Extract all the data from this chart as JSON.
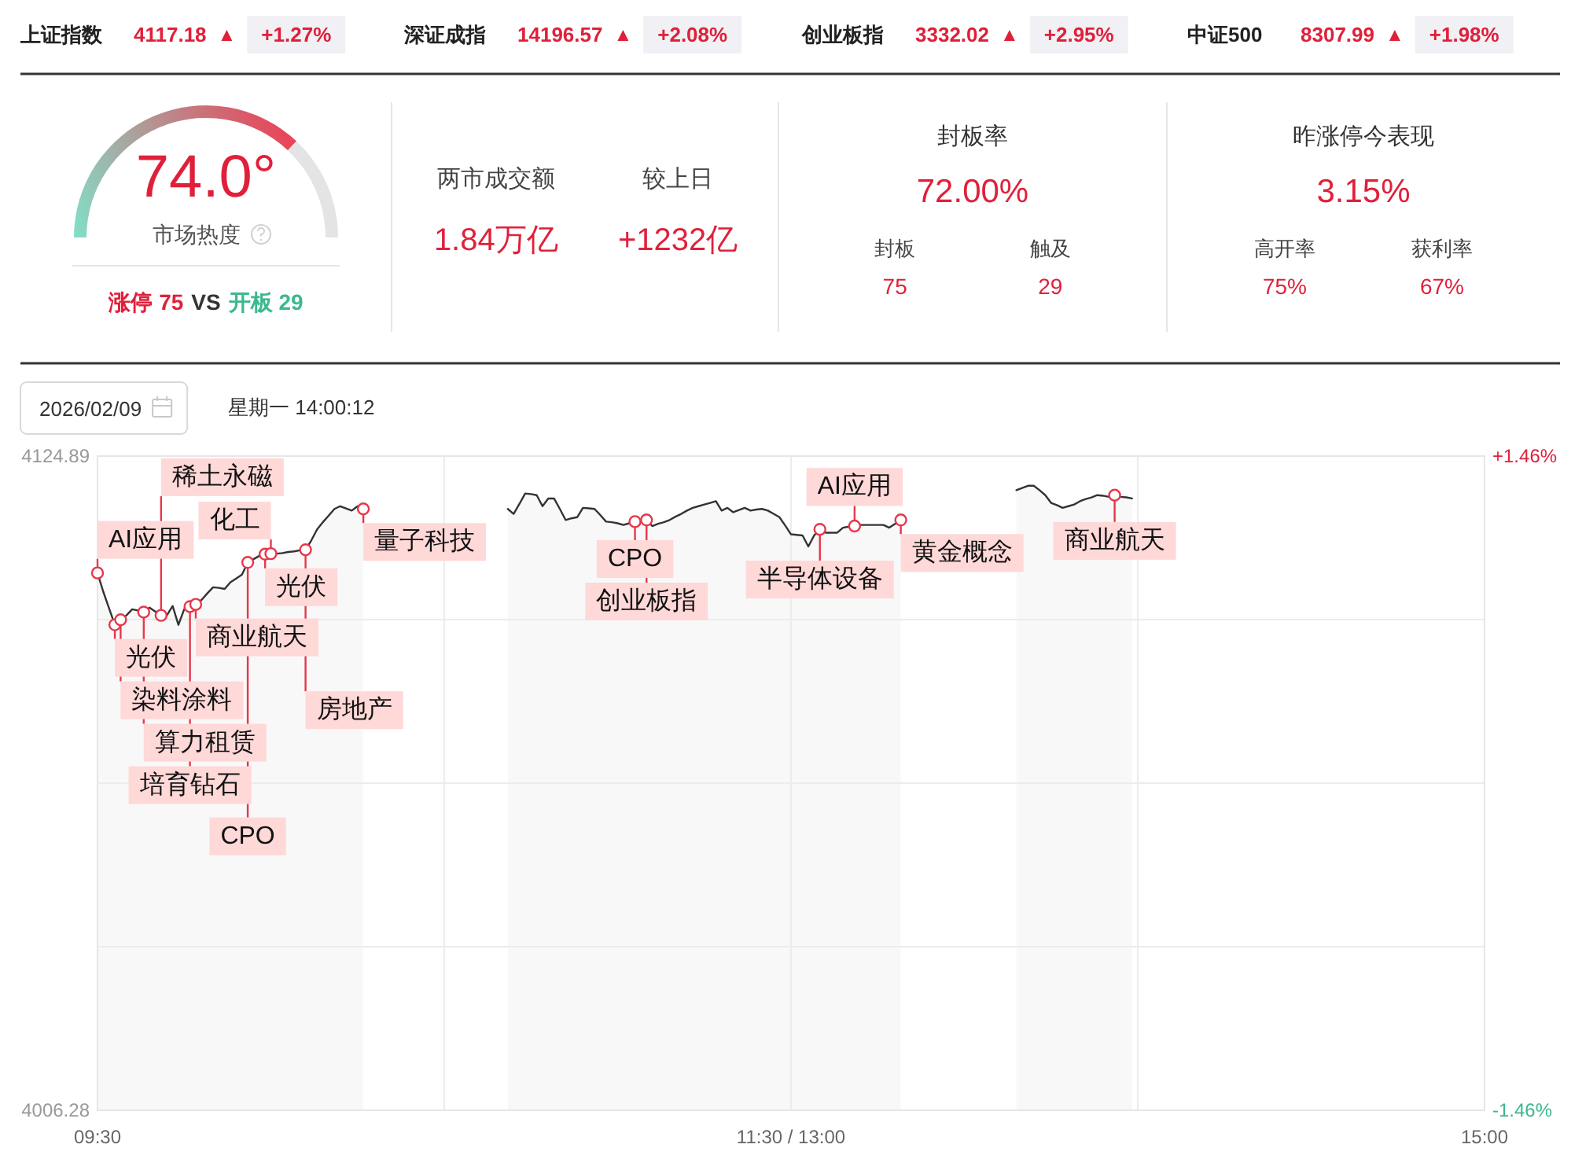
{
  "chart_data": [
    {
      "type": "other",
      "annotations": [
        "上证指数",
        "4117.18",
        "▲",
        "+1.27%",
        "深证成指",
        "14196.57",
        "▲",
        "+2.08%",
        "创业板指",
        "3332.02",
        "▲",
        "+2.95%",
        "中证500",
        "8307.99",
        "▲",
        "+1.98%"
      ]
    },
    {
      "type": "donut",
      "title": "市场热度",
      "categories": [
        null,
        null
      ],
      "values": [
        74.0,
        26.0
      ],
      "colors": [
        "#e8455a",
        "#e4e4e4"
      ],
      "annotations": [
        "74.0°",
        "涨停 75",
        "VS",
        "开板 29"
      ]
    },
    {
      "type": "other",
      "annotations": [
        "两市成交额",
        "1.84万亿",
        "较上日",
        "+1232亿"
      ]
    },
    {
      "type": "other",
      "title": "封板率",
      "annotations": [
        "72.00%",
        "封板",
        "75",
        "触及",
        "29"
      ]
    },
    {
      "type": "other",
      "title": "昨涨停今表现",
      "annotations": [
        "3.15%",
        "高开率",
        "75%",
        "获利率",
        "67%"
      ]
    },
    {
      "type": "other",
      "annotations": [
        "2026/02/09",
        "星期一 14:00:12"
      ]
    },
    {
      "type": "area",
      "categories": [
        "09:30",
        null,
        null,
        null,
        null,
        null,
        null,
        null,
        null,
        null,
        null,
        null,
        null,
        null,
        null,
        null,
        null,
        null,
        null,
        null,
        null,
        null,
        null,
        null,
        null,
        null,
        null,
        null,
        null,
        null,
        null,
        null,
        null,
        null,
        null,
        null,
        null,
        null,
        null,
        null,
        null,
        null,
        null,
        null,
        null,
        null,
        null,
        null,
        null,
        null,
        null,
        null,
        null,
        null,
        null,
        null,
        null,
        null,
        null,
        null,
        null,
        null,
        null,
        null,
        null,
        null,
        null,
        null,
        null,
        null,
        null,
        null,
        null,
        null,
        null,
        null,
        null,
        null,
        null,
        null,
        null,
        null,
        null,
        null,
        null,
        null,
        null,
        null,
        null,
        null,
        null,
        null,
        null,
        null,
        null,
        null,
        null,
        null,
        null,
        null,
        null,
        null,
        null,
        null,
        null,
        null,
        null,
        null,
        null,
        null,
        null,
        null,
        null,
        null,
        null,
        null,
        null,
        null,
        null,
        null,
        "11:30 / 13:00",
        null,
        null,
        null,
        null,
        null,
        null,
        null,
        null,
        null,
        null,
        null,
        null,
        null,
        null,
        null,
        null,
        null,
        null,
        null,
        null,
        null,
        null,
        null,
        null,
        null,
        null,
        null,
        null,
        null,
        null,
        null,
        null,
        null,
        null,
        null,
        null,
        null,
        null,
        null,
        null,
        null,
        null,
        null,
        null,
        null,
        null,
        null,
        null,
        null,
        null,
        null,
        null,
        null,
        null,
        null,
        null,
        null,
        null,
        null,
        null,
        null,
        null,
        null,
        null,
        null,
        null,
        null,
        null,
        null,
        null,
        null,
        null,
        null,
        null,
        null,
        null,
        null,
        null,
        null,
        null,
        null,
        null,
        null,
        null,
        null,
        null,
        null,
        null,
        null,
        null,
        null,
        null,
        null,
        null,
        null,
        null,
        null,
        null,
        null,
        null,
        null,
        null,
        null,
        null,
        null,
        null,
        null,
        null,
        null,
        null,
        null,
        null,
        null,
        null,
        null,
        null,
        null,
        null,
        null,
        "15:00"
      ],
      "series": [
        {
          "type": "area",
          "color": "#333333",
          "values": [
            4103.7,
            4100.3,
            4097.3,
            4094.3,
            4095.2,
            4096.0,
            4097.1,
            4096.9,
            4096.6,
            4097.4,
            4096.7,
            4096.0,
            4096.0,
            4097.7,
            4094.3,
            4097.1,
            4097.6,
            4098.0,
            4098.8,
            4100.0,
            4101.1,
            4101.0,
            4100.8,
            4102.0,
            4102.7,
            4103.4,
            4105.6,
            4106.2,
            4106.8,
            4107.1,
            4107.2,
            4107.2,
            4107.3,
            4107.5,
            4107.6,
            4107.8,
            4107.9,
            4109.6,
            4111.6,
            4112.9,
            4114.1,
            4115.3,
            4115.8,
            4115.4,
            4115.0,
            4115.8,
            4115.3,
            null,
            null,
            null,
            null,
            null,
            null,
            null,
            null,
            null,
            null,
            null,
            null,
            null,
            null,
            null,
            null,
            null,
            null,
            null,
            null,
            null,
            null,
            null,
            null,
            4115.3,
            4114.4,
            4116.2,
            4118.1,
            4118.0,
            4117.8,
            4115.8,
            4117.2,
            4117.2,
            4115.3,
            4113.3,
            4113.6,
            4113.8,
            4115.5,
            4115.4,
            4115.3,
            4114.2,
            4113.0,
            4112.9,
            4112.7,
            4112.4,
            4112.7,
            4113.0,
            4113.2,
            4113.3,
            4112.2,
            4112.6,
            4112.9,
            4113.3,
            4113.9,
            4114.4,
            4115.0,
            4115.5,
            4115.8,
            4116.1,
            4116.4,
            4116.7,
            4115.0,
            4115.5,
            4114.7,
            4115.1,
            4115.5,
            4115.0,
            4115.2,
            4115.3,
            4115.0,
            4114.4,
            4113.8,
            4112.3,
            4110.7,
            4110.6,
            4110.5,
            4108.5,
            4110.5,
            4111.6,
            4111.0,
            4111.0,
            4111.0,
            4111.9,
            4112.1,
            4112.2,
            4112.4,
            4112.4,
            4112.4,
            4112.4,
            4112.4,
            4111.9,
            4112.6,
            4113.3,
            null,
            null,
            null,
            null,
            null,
            null,
            null,
            null,
            null,
            null,
            null,
            null,
            null,
            null,
            null,
            null,
            null,
            null,
            null,
            4118.7,
            4119.1,
            4119.5,
            4119.5,
            4118.7,
            4117.8,
            4116.4,
            4116.0,
            4115.5,
            4115.8,
            4116.1,
            4116.7,
            4117.1,
            4117.4,
            4117.8,
            4117.7,
            4117.5,
            4117.8,
            4117.5,
            4117.4,
            4117.2,
            null,
            null,
            null,
            null,
            null,
            null,
            null,
            null,
            null,
            null,
            null,
            null,
            null,
            null,
            null,
            null,
            null,
            null,
            null,
            null,
            null,
            null,
            null,
            null,
            null,
            null,
            null,
            null,
            null,
            null,
            null,
            null,
            null,
            null,
            null,
            null,
            null,
            null,
            null,
            null,
            null,
            null,
            null,
            null,
            null,
            null,
            null,
            null,
            null,
            null,
            null,
            null,
            null,
            null,
            null,
            null,
            null,
            null,
            null,
            null,
            null
          ]
        },
        {
          "type": "scatter",
          "color": "#e8364a",
          "marker": "circle",
          "values": [
            4103.7,
            null,
            null,
            4094.3,
            4095.2,
            null,
            null,
            null,
            4096.6,
            null,
            null,
            4096.0,
            null,
            null,
            null,
            null,
            4097.6,
            4098.0,
            null,
            null,
            null,
            null,
            null,
            null,
            null,
            null,
            4105.6,
            null,
            null,
            4107.1,
            4107.2,
            null,
            null,
            null,
            null,
            null,
            4107.9,
            null,
            null,
            null,
            null,
            null,
            null,
            null,
            null,
            null,
            4115.3,
            null,
            null,
            null,
            null,
            null,
            null,
            null,
            null,
            null,
            null,
            null,
            null,
            null,
            null,
            null,
            null,
            null,
            null,
            null,
            null,
            null,
            null,
            null,
            null,
            null,
            null,
            null,
            null,
            null,
            null,
            null,
            null,
            null,
            null,
            null,
            null,
            null,
            null,
            null,
            null,
            null,
            null,
            null,
            null,
            null,
            null,
            4113.0,
            null,
            4113.3,
            null,
            null,
            null,
            null,
            null,
            null,
            null,
            null,
            null,
            null,
            null,
            null,
            null,
            null,
            null,
            null,
            null,
            null,
            null,
            null,
            null,
            null,
            null,
            null,
            null,
            null,
            null,
            null,
            null,
            4111.6,
            null,
            null,
            null,
            null,
            null,
            4112.2,
            null,
            null,
            null,
            null,
            null,
            null,
            null,
            4113.3,
            null,
            null,
            null,
            null,
            null,
            null,
            null,
            null,
            null,
            null,
            null,
            null,
            null,
            null,
            null,
            null,
            null,
            null,
            null,
            null,
            null,
            null,
            null,
            null,
            null,
            null,
            null,
            null,
            null,
            null,
            null,
            null,
            null,
            null,
            null,
            null,
            4117.8,
            null,
            null,
            null,
            null,
            null,
            null,
            null,
            null,
            null,
            null,
            null,
            null,
            null,
            null,
            null,
            null,
            null,
            null,
            null,
            null,
            null,
            null,
            null,
            null,
            null,
            null,
            null,
            null,
            null,
            null,
            null,
            null,
            null,
            null,
            null,
            null,
            null,
            null,
            null,
            null,
            null,
            null,
            null,
            null,
            null,
            null,
            null,
            null,
            null,
            null,
            null,
            null,
            null,
            null,
            null,
            null,
            null,
            null,
            null,
            null,
            null,
            null,
            null,
            null
          ],
          "value_labels": [
            "AI应用",
            null,
            null,
            "光伏",
            "染料涂料",
            null,
            null,
            null,
            "算力租赁",
            null,
            null,
            "稀土永磁",
            null,
            null,
            null,
            null,
            "培育钻石",
            "商业航天",
            null,
            null,
            null,
            null,
            null,
            null,
            null,
            null,
            "CPO",
            null,
            null,
            "光伏",
            "化工",
            null,
            null,
            null,
            null,
            null,
            "房地产",
            null,
            null,
            null,
            null,
            null,
            null,
            null,
            null,
            null,
            "量子科技",
            null,
            null,
            null,
            null,
            null,
            null,
            null,
            null,
            null,
            null,
            null,
            null,
            null,
            null,
            null,
            null,
            null,
            null,
            null,
            null,
            null,
            null,
            null,
            null,
            null,
            null,
            null,
            null,
            null,
            null,
            null,
            null,
            null,
            null,
            null,
            null,
            null,
            null,
            null,
            null,
            null,
            null,
            null,
            null,
            null,
            null,
            "CPO",
            null,
            "创业板指",
            null,
            null,
            null,
            null,
            null,
            null,
            null,
            null,
            null,
            null,
            null,
            null,
            null,
            null,
            null,
            null,
            null,
            null,
            null,
            null,
            null,
            null,
            null,
            null,
            null,
            null,
            null,
            null,
            null,
            "半导体设备",
            null,
            null,
            null,
            null,
            null,
            "AI应用",
            null,
            null,
            null,
            null,
            null,
            null,
            null,
            "黄金概念",
            null,
            null,
            null,
            null,
            null,
            null,
            null,
            null,
            null,
            null,
            null,
            null,
            null,
            null,
            null,
            null,
            null,
            null,
            null,
            null,
            null,
            null,
            null,
            null,
            null,
            null,
            null,
            null,
            null,
            null,
            null,
            null,
            null,
            null,
            null,
            null,
            "商业航天",
            null,
            null,
            null,
            null,
            null,
            null,
            null,
            null,
            null,
            null,
            null,
            null,
            null,
            null,
            null,
            null,
            null,
            null,
            null,
            null,
            null,
            null,
            null,
            null,
            null,
            null,
            null,
            null,
            null,
            null,
            null,
            null,
            null,
            null,
            null,
            null,
            null,
            null,
            null,
            null,
            null,
            null,
            null,
            null,
            null,
            null,
            null,
            null,
            null,
            null,
            null,
            null,
            null,
            null,
            null,
            null,
            null,
            null,
            null,
            null,
            null,
            null,
            null,
            null
          ]
        }
      ],
      "ylim": [
        4006.28,
        4124.89
      ],
      "yticks": [
        4006.28,
        {
          "value": 4035.93,
          "label": null
        },
        {
          "value": 4065.59,
          "label": null
        },
        {
          "value": 4095.24,
          "label": null
        },
        4124.89
      ],
      "y2lim": [
        -1.46,
        1.46
      ],
      "y2ticks": [
        {
          "value": -1.46,
          "label": "-1.46%"
        },
        {
          "value": 1.46,
          "label": "+1.46%"
        }
      ],
      "grid": true
    }
  ]
}
